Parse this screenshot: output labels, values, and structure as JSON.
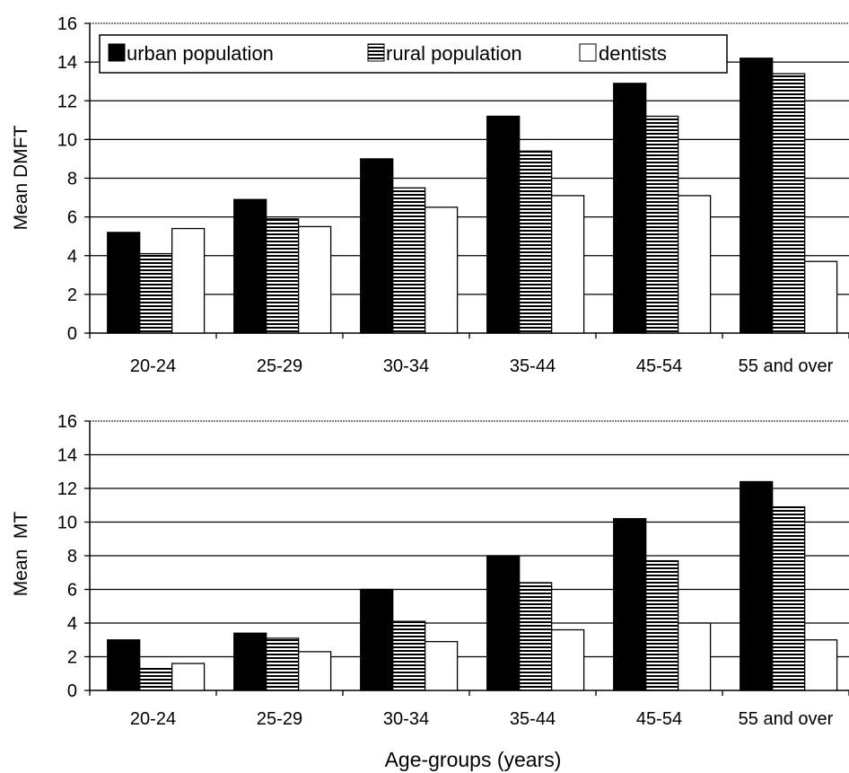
{
  "chart_data": [
    {
      "type": "bar",
      "title": "",
      "ylabel": "Mean DMFT",
      "xlabel": "",
      "ylim": [
        0,
        16
      ],
      "yticks": [
        0,
        2,
        4,
        6,
        8,
        10,
        12,
        14,
        16
      ],
      "categories": [
        "20-24",
        "25-29",
        "30-34",
        "35-44",
        "45-54",
        "55 and over"
      ],
      "series": [
        {
          "name": "urban population",
          "values": [
            5.2,
            6.9,
            9.0,
            11.2,
            12.9,
            14.2
          ]
        },
        {
          "name": "rural population",
          "values": [
            4.1,
            5.9,
            7.5,
            9.4,
            11.2,
            13.4
          ]
        },
        {
          "name": "dentists",
          "values": [
            5.4,
            5.5,
            6.5,
            7.1,
            7.1,
            3.7
          ]
        }
      ],
      "grid": true,
      "legend": "top"
    },
    {
      "type": "bar",
      "title": "",
      "ylabel": "Mean  MT",
      "xlabel": "Age-groups (years)",
      "ylim": [
        0,
        16
      ],
      "yticks": [
        0,
        2,
        4,
        6,
        8,
        10,
        12,
        14,
        16
      ],
      "categories": [
        "20-24",
        "25-29",
        "30-34",
        "35-44",
        "45-54",
        "55 and over"
      ],
      "series": [
        {
          "name": "urban population",
          "values": [
            3.0,
            3.4,
            6.0,
            8.0,
            10.2,
            12.4
          ]
        },
        {
          "name": "rural population",
          "values": [
            1.3,
            3.1,
            4.1,
            6.4,
            7.7,
            10.9
          ]
        },
        {
          "name": "dentists",
          "values": [
            1.6,
            2.3,
            2.9,
            3.6,
            4.0,
            3.0
          ]
        }
      ],
      "grid": true,
      "legend": "none"
    }
  ],
  "colors": {
    "urban": "#000000",
    "rural_stripe": "#000000",
    "rural_gap": "#ffffff",
    "dentists": "#ffffff",
    "grid": "#000000"
  }
}
